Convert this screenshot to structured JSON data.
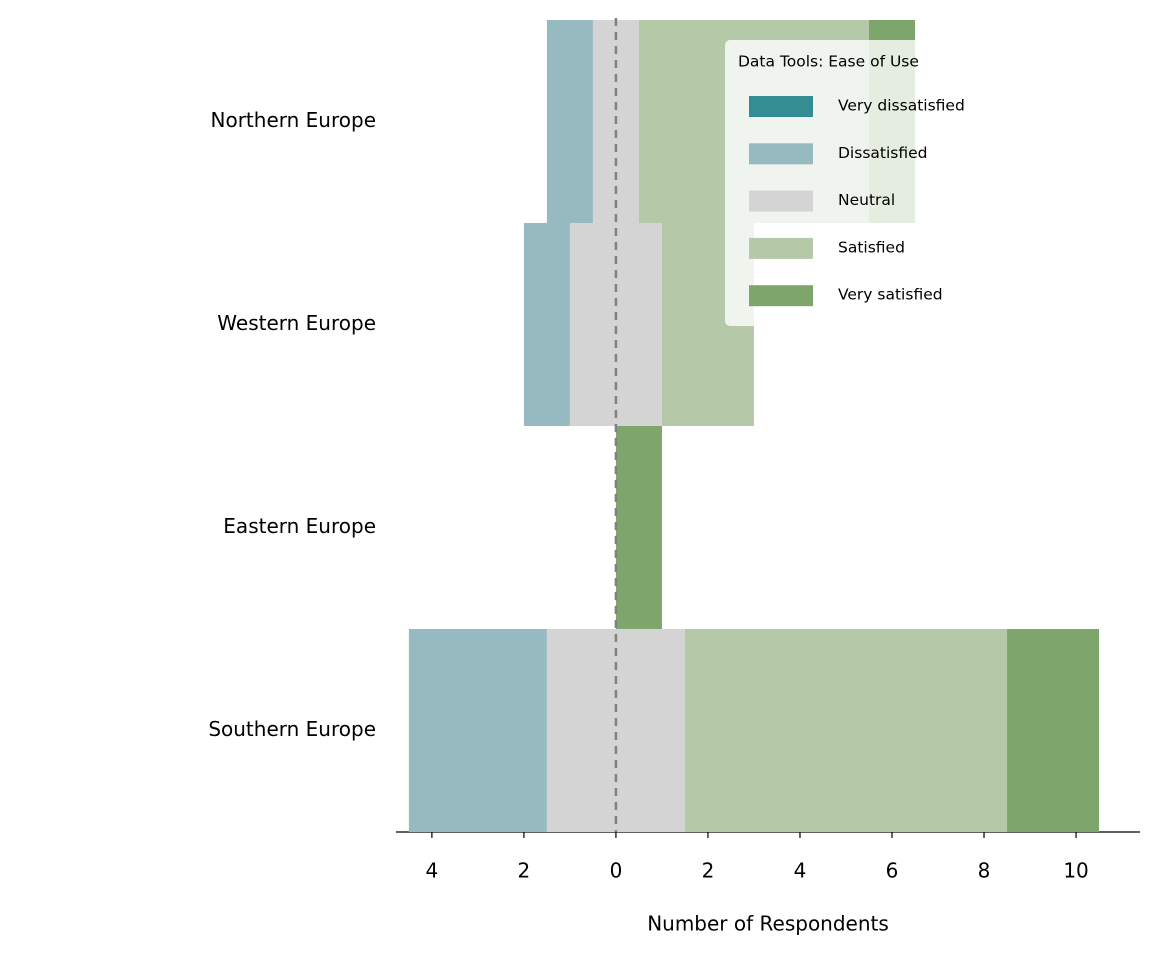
{
  "chart_data": {
    "type": "bar",
    "orientation": "horizontal",
    "xlabel": "Number of Respondents",
    "legend_title": "Data Tools: Ease of Use",
    "legend": "upper right",
    "categories": [
      "Northern Europe",
      "Western Europe",
      "Eastern Europe",
      "Southern Europe"
    ],
    "series": [
      {
        "name": "Very dissatisfied",
        "color": "#358d94",
        "values": [
          0,
          0,
          0,
          0
        ]
      },
      {
        "name": "Dissatisfied",
        "color": "#97b9c0",
        "values": [
          1,
          1,
          0,
          3
        ]
      },
      {
        "name": "Neutral",
        "color": "#d4d4d4",
        "values": [
          1,
          2,
          0,
          3
        ]
      },
      {
        "name": "Satisfied",
        "color": "#b5c9a9",
        "values": [
          5,
          2,
          0,
          7
        ]
      },
      {
        "name": "Very satisfied",
        "color": "#7ea66c",
        "values": [
          1,
          0,
          1,
          2
        ]
      }
    ],
    "xlim": [
      -4.78,
      11.39
    ],
    "xticks": [
      {
        "value": -4,
        "label": "4"
      },
      {
        "value": -2,
        "label": "2"
      },
      0,
      2,
      4,
      6,
      8,
      10
    ]
  }
}
